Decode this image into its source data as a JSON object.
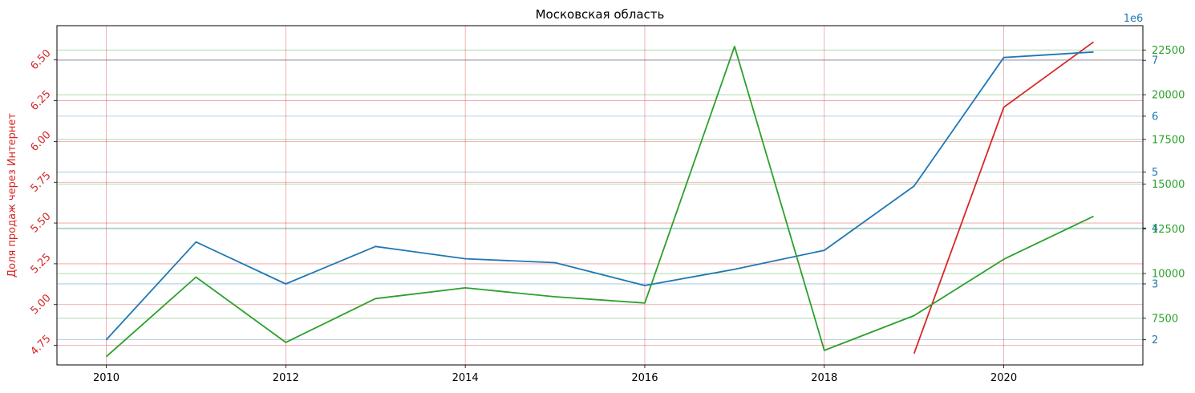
{
  "chart_data": {
    "type": "line",
    "title": "Московская область",
    "x": [
      2010,
      2011,
      2012,
      2013,
      2014,
      2015,
      2016,
      2017,
      2018,
      2019,
      2020,
      2021
    ],
    "xlim": [
      2009.45,
      2021.55
    ],
    "x_ticks": [
      2010,
      2012,
      2014,
      2016,
      2018,
      2020
    ],
    "grid": true,
    "axes": {
      "left": {
        "label": "Доля продаж через Интернет",
        "color": "#d62728",
        "ylim": [
          4.63,
          6.71
        ],
        "ticks": [
          4.75,
          5.0,
          5.25,
          5.5,
          5.75,
          6.0,
          6.25,
          6.5
        ],
        "tick_labels": [
          "4.75",
          "5.00",
          "5.25",
          "5.50",
          "5.75",
          "6.00",
          "6.25",
          "6.50"
        ]
      },
      "right_outer": {
        "label": "",
        "color": "#1f77b4",
        "offset_label": "1e6",
        "ylim": [
          1.55,
          7.62
        ],
        "ticks": [
          2,
          3,
          4,
          5,
          6,
          7
        ],
        "tick_labels": [
          "2",
          "3",
          "4",
          "5",
          "6",
          "7"
        ]
      },
      "right_inner": {
        "label": "",
        "color": "#2ca02c",
        "ylim": [
          4890,
          23860
        ],
        "ticks": [
          7500,
          10000,
          12500,
          15000,
          17500,
          20000,
          22500
        ],
        "tick_labels": [
          "7500",
          "10000",
          "12500",
          "15000",
          "17500",
          "20000",
          "22500"
        ]
      }
    },
    "series": [
      {
        "axis": "left",
        "color": "#d62728",
        "points": [
          [
            2019,
            4.7
          ],
          [
            2020,
            6.21
          ],
          [
            2021,
            6.61
          ]
        ]
      },
      {
        "axis": "right_outer",
        "color": "#1f77b4",
        "points": [
          [
            2010,
            2.0
          ],
          [
            2011,
            3.75
          ],
          [
            2012,
            3.0
          ],
          [
            2013,
            3.67
          ],
          [
            2014,
            3.45
          ],
          [
            2015,
            3.38
          ],
          [
            2016,
            2.97
          ],
          [
            2017,
            3.26
          ],
          [
            2018,
            3.6
          ],
          [
            2019,
            4.75
          ],
          [
            2020,
            7.05
          ],
          [
            2021,
            7.15
          ]
        ]
      },
      {
        "axis": "right_inner",
        "color": "#2ca02c",
        "points": [
          [
            2010,
            5350
          ],
          [
            2011,
            9800
          ],
          [
            2012,
            6150
          ],
          [
            2013,
            8600
          ],
          [
            2014,
            9200
          ],
          [
            2015,
            8700
          ],
          [
            2016,
            8350
          ],
          [
            2017,
            22700
          ],
          [
            2018,
            5700
          ],
          [
            2019,
            7650
          ],
          [
            2020,
            10800
          ],
          [
            2021,
            13200
          ]
        ]
      }
    ]
  }
}
